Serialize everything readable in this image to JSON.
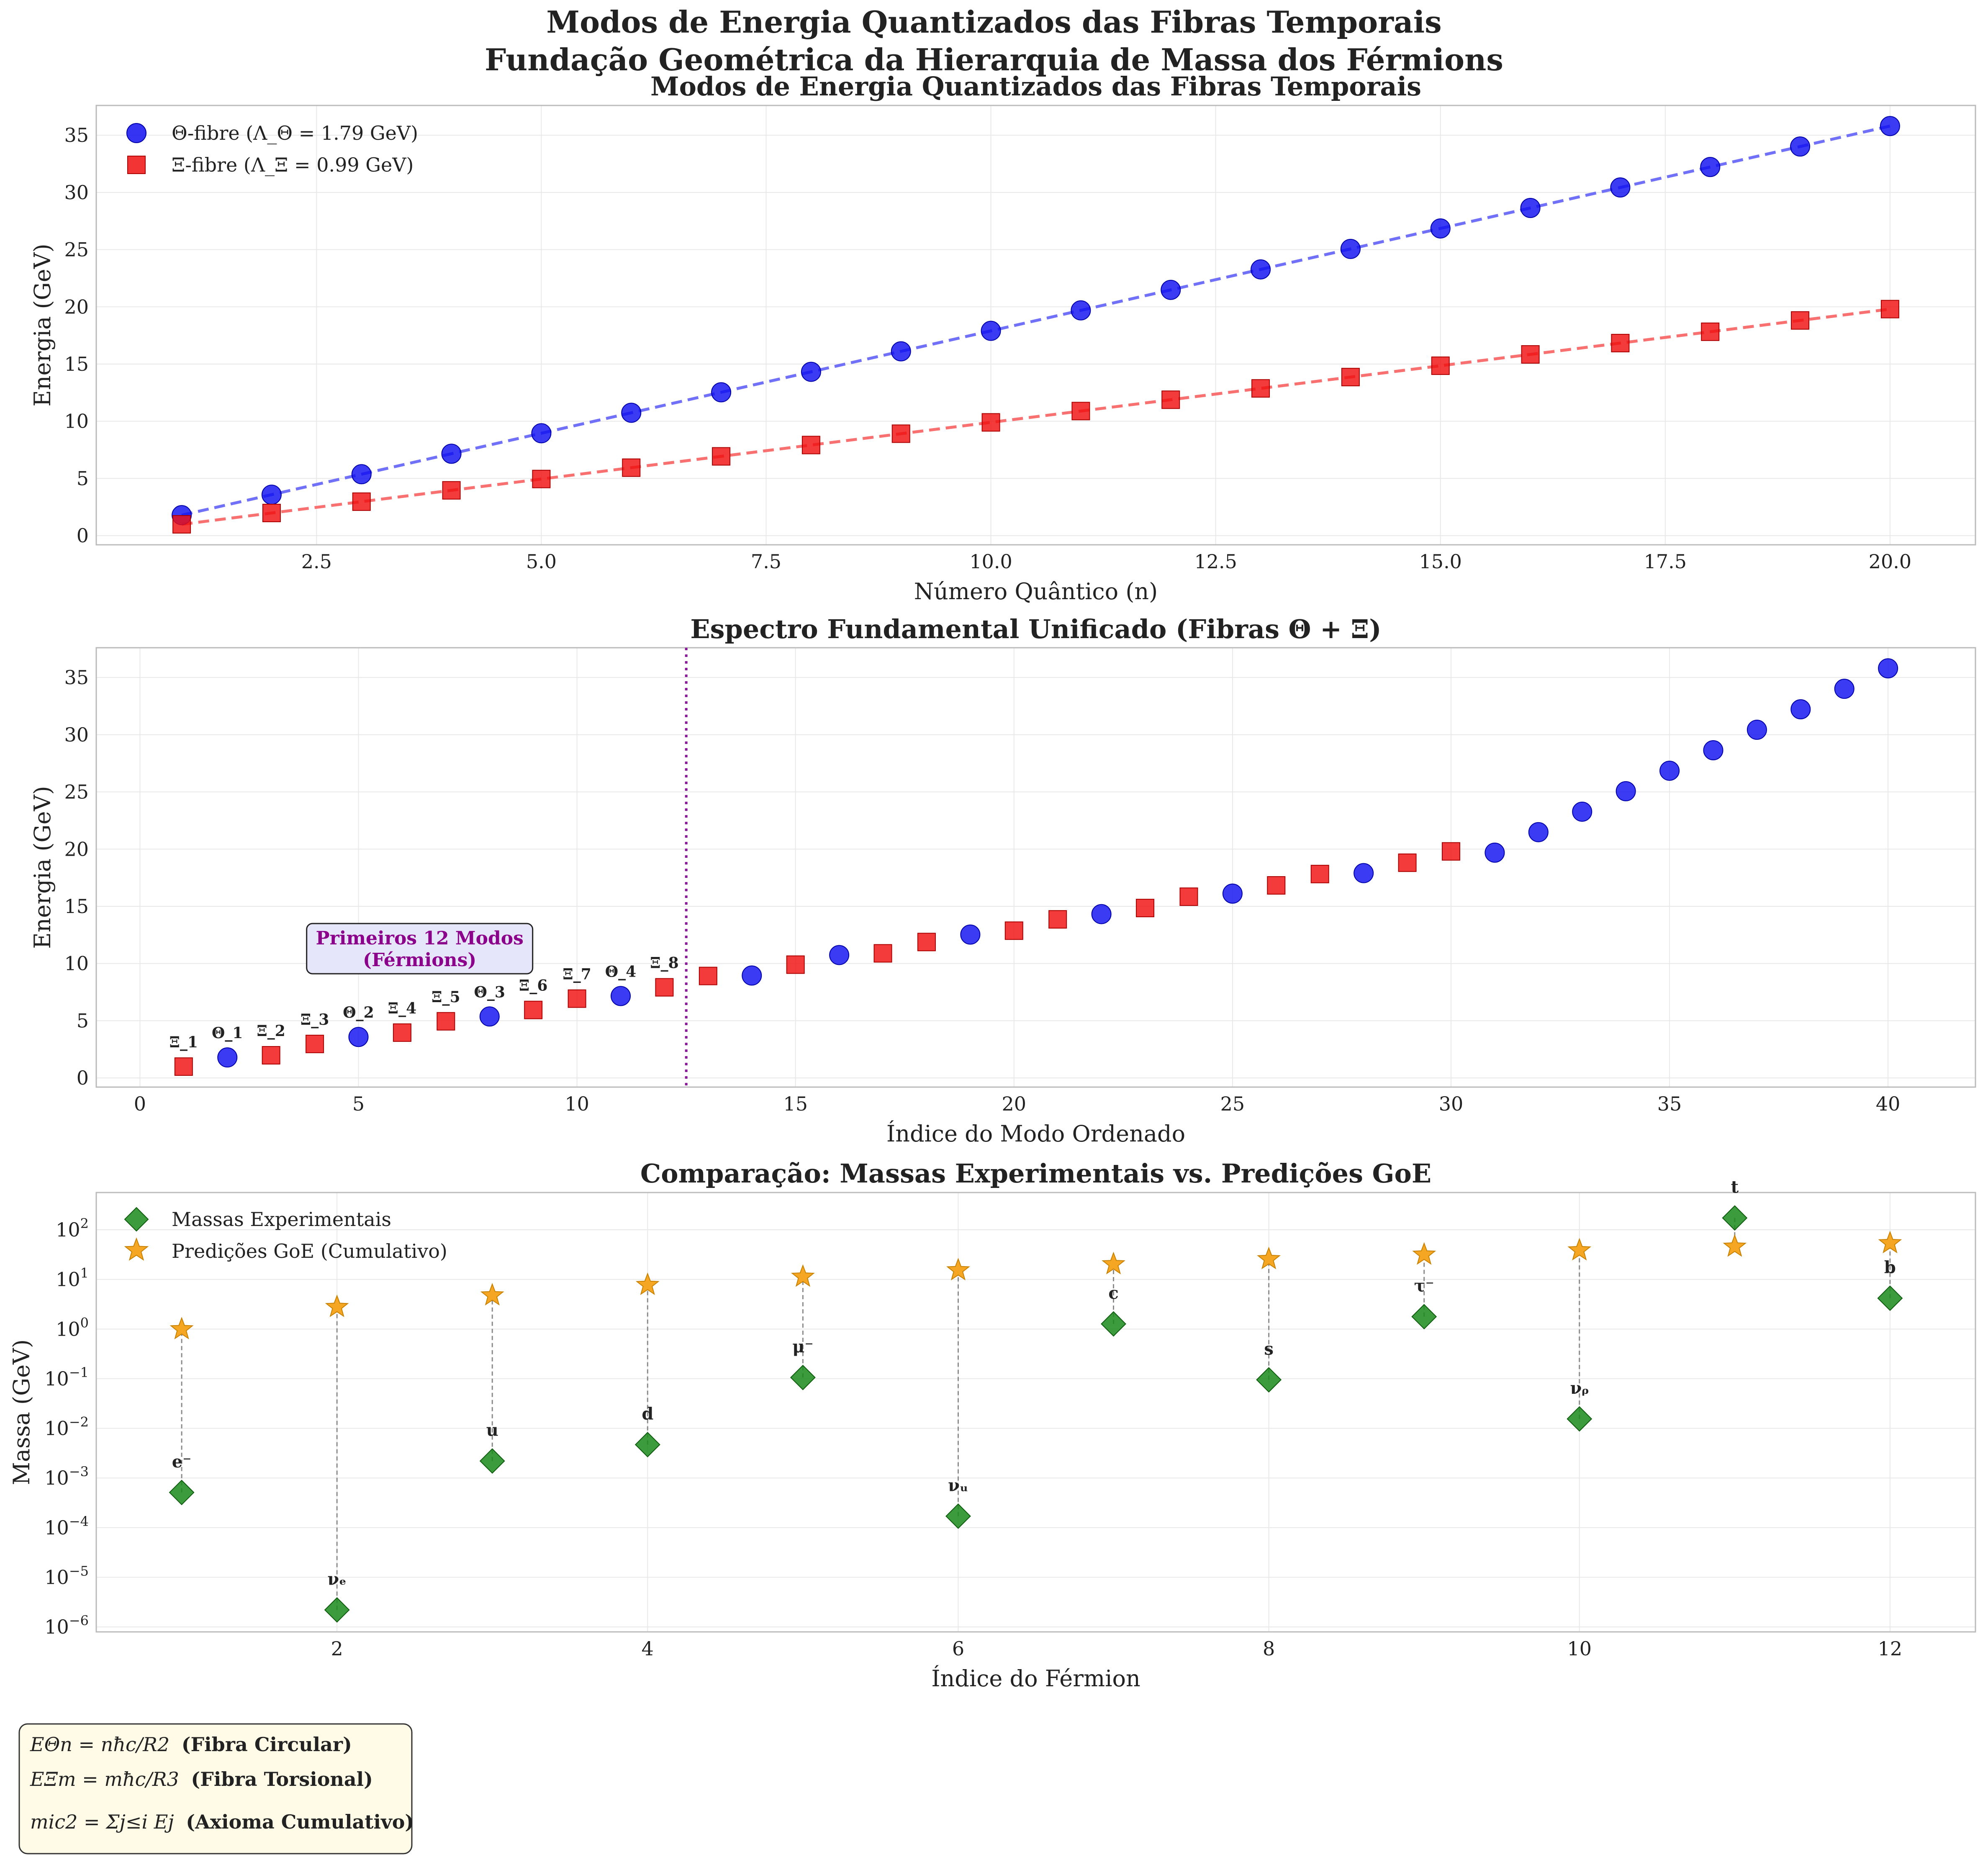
{
  "figure": {
    "suptitle_line1": "Modos de Energia Quantizados das Fibras Temporais",
    "suptitle_line2": "Fundação Geométrica da Hierarquia de Massa dos Férmions"
  },
  "chart_data": [
    {
      "type": "scatter",
      "title": "Modos de Energia Quantizados das Fibras Temporais",
      "xlabel": "Número Quântico (n)",
      "ylabel": "Energia (GeV)",
      "xlim": [
        0.05,
        20.95
      ],
      "ylim": [
        -0.8,
        37.6
      ],
      "xticks": [
        2.5,
        5.0,
        7.5,
        10.0,
        12.5,
        15.0,
        17.5,
        20.0
      ],
      "xtick_labels": [
        "2.5",
        "5.0",
        "7.5",
        "10.0",
        "12.5",
        "15.0",
        "17.5",
        "20.0"
      ],
      "yticks": [
        0,
        5,
        10,
        15,
        20,
        25,
        30,
        35
      ],
      "ytick_labels": [
        "0",
        "5",
        "10",
        "15",
        "20",
        "25",
        "30",
        "35"
      ],
      "grid": true,
      "legend": "top-left",
      "series": [
        {
          "name": "Θ-fibre (Λ_Θ = 1.79 GeV)",
          "marker": "circle",
          "color": "#1010f0",
          "fit_color": "#7070f8",
          "x": [
            1,
            2,
            3,
            4,
            5,
            6,
            7,
            8,
            9,
            10,
            11,
            12,
            13,
            14,
            15,
            16,
            17,
            18,
            19,
            20
          ],
          "values": [
            1.79,
            3.58,
            5.37,
            7.16,
            8.95,
            10.74,
            12.53,
            14.32,
            16.11,
            17.9,
            19.69,
            21.48,
            23.27,
            25.06,
            26.85,
            28.64,
            30.43,
            32.22,
            34.01,
            35.8
          ]
        },
        {
          "name": "Ξ-fibre (Λ_Ξ = 0.99 GeV)",
          "marker": "square",
          "color": "#f01010",
          "fit_color": "#f87070",
          "x": [
            1,
            2,
            3,
            4,
            5,
            6,
            7,
            8,
            9,
            10,
            11,
            12,
            13,
            14,
            15,
            16,
            17,
            18,
            19,
            20
          ],
          "values": [
            0.99,
            1.98,
            2.97,
            3.96,
            4.95,
            5.94,
            6.93,
            7.92,
            8.91,
            9.9,
            10.89,
            11.88,
            12.87,
            13.86,
            14.85,
            15.84,
            16.83,
            17.82,
            18.81,
            19.8
          ]
        }
      ]
    },
    {
      "type": "scatter",
      "title": "Espectro Fundamental Unificado (Fibras Θ + Ξ)",
      "xlabel": "Índice do Modo Ordenado",
      "ylabel": "Energia (GeV)",
      "xlim": [
        -1.0,
        42.0
      ],
      "ylim": [
        -0.8,
        37.6
      ],
      "xticks": [
        0,
        5,
        10,
        15,
        20,
        25,
        30,
        35,
        40
      ],
      "xtick_labels": [
        "0",
        "5",
        "10",
        "15",
        "20",
        "25",
        "30",
        "35",
        "40"
      ],
      "yticks": [
        0,
        5,
        10,
        15,
        20,
        25,
        30,
        35
      ],
      "ytick_labels": [
        "0",
        "5",
        "10",
        "15",
        "20",
        "25",
        "30",
        "35"
      ],
      "grid": true,
      "cutoff_x": 12.5,
      "annotation": {
        "line1": "Primeiros 12 Modos",
        "line2": "(Férmions)",
        "x": 6.4,
        "y": 11.3
      },
      "mode_labels": [
        "Ξ_1",
        "Θ_1",
        "Ξ_2",
        "Ξ_3",
        "Θ_2",
        "Ξ_4",
        "Ξ_5",
        "Θ_3",
        "Ξ_6",
        "Ξ_7",
        "Θ_4",
        "Ξ_8"
      ],
      "points": [
        {
          "x": 1,
          "y": 0.99,
          "fiber": "Xi"
        },
        {
          "x": 2,
          "y": 1.79,
          "fiber": "Theta"
        },
        {
          "x": 3,
          "y": 1.98,
          "fiber": "Xi"
        },
        {
          "x": 4,
          "y": 2.97,
          "fiber": "Xi"
        },
        {
          "x": 5,
          "y": 3.58,
          "fiber": "Theta"
        },
        {
          "x": 6,
          "y": 3.96,
          "fiber": "Xi"
        },
        {
          "x": 7,
          "y": 4.95,
          "fiber": "Xi"
        },
        {
          "x": 8,
          "y": 5.37,
          "fiber": "Theta"
        },
        {
          "x": 9,
          "y": 5.94,
          "fiber": "Xi"
        },
        {
          "x": 10,
          "y": 6.93,
          "fiber": "Xi"
        },
        {
          "x": 11,
          "y": 7.16,
          "fiber": "Theta"
        },
        {
          "x": 12,
          "y": 7.92,
          "fiber": "Xi"
        },
        {
          "x": 13,
          "y": 8.91,
          "fiber": "Xi"
        },
        {
          "x": 14,
          "y": 8.95,
          "fiber": "Theta"
        },
        {
          "x": 15,
          "y": 9.9,
          "fiber": "Xi"
        },
        {
          "x": 16,
          "y": 10.74,
          "fiber": "Theta"
        },
        {
          "x": 17,
          "y": 10.89,
          "fiber": "Xi"
        },
        {
          "x": 18,
          "y": 11.88,
          "fiber": "Xi"
        },
        {
          "x": 19,
          "y": 12.53,
          "fiber": "Theta"
        },
        {
          "x": 20,
          "y": 12.87,
          "fiber": "Xi"
        },
        {
          "x": 21,
          "y": 13.86,
          "fiber": "Xi"
        },
        {
          "x": 22,
          "y": 14.32,
          "fiber": "Theta"
        },
        {
          "x": 23,
          "y": 14.85,
          "fiber": "Xi"
        },
        {
          "x": 24,
          "y": 15.84,
          "fiber": "Xi"
        },
        {
          "x": 25,
          "y": 16.11,
          "fiber": "Theta"
        },
        {
          "x": 26,
          "y": 16.83,
          "fiber": "Xi"
        },
        {
          "x": 27,
          "y": 17.82,
          "fiber": "Xi"
        },
        {
          "x": 28,
          "y": 17.9,
          "fiber": "Theta"
        },
        {
          "x": 29,
          "y": 18.81,
          "fiber": "Xi"
        },
        {
          "x": 30,
          "y": 19.8,
          "fiber": "Xi"
        },
        {
          "x": 31,
          "y": 19.69,
          "fiber": "Theta"
        },
        {
          "x": 32,
          "y": 21.48,
          "fiber": "Theta"
        },
        {
          "x": 33,
          "y": 23.27,
          "fiber": "Theta"
        },
        {
          "x": 34,
          "y": 25.06,
          "fiber": "Theta"
        },
        {
          "x": 35,
          "y": 26.85,
          "fiber": "Theta"
        },
        {
          "x": 36,
          "y": 28.64,
          "fiber": "Theta"
        },
        {
          "x": 37,
          "y": 30.43,
          "fiber": "Theta"
        },
        {
          "x": 38,
          "y": 32.22,
          "fiber": "Theta"
        },
        {
          "x": 39,
          "y": 34.01,
          "fiber": "Theta"
        },
        {
          "x": 40,
          "y": 35.8,
          "fiber": "Theta"
        }
      ]
    },
    {
      "type": "scatter",
      "title": "Comparação: Massas Experimentais vs. Predições GoE",
      "xlabel": "Índice do Férmion",
      "ylabel": "Massa (GeV)",
      "yscale": "log",
      "xlim": [
        0.45,
        12.55
      ],
      "ylim_log10": [
        -6.1,
        2.75
      ],
      "xticks": [
        2,
        4,
        6,
        8,
        10,
        12
      ],
      "xtick_labels": [
        "2",
        "4",
        "6",
        "8",
        "10",
        "12"
      ],
      "yticks_log10": [
        -6,
        -5,
        -4,
        -3,
        -2,
        -1,
        0,
        1,
        2
      ],
      "ytick_labels": [
        "10−6",
        "10−5",
        "10−4",
        "10−3",
        "10−2",
        "10−1",
        "100",
        "101",
        "102"
      ],
      "grid": true,
      "legend": "top-left",
      "series": [
        {
          "name": "Massas Experimentais",
          "marker": "diamond",
          "color": "#1a8a1a",
          "x": [
            1,
            2,
            3,
            4,
            5,
            6,
            7,
            8,
            9,
            10,
            11,
            12
          ],
          "values": [
            0.000511,
            2.2e-06,
            0.0022,
            0.0047,
            0.1057,
            0.00017,
            1.27,
            0.095,
            1.777,
            0.0155,
            173,
            4.18
          ],
          "labels": [
            "e⁻",
            "νₑ",
            "u",
            "d",
            "μ⁻",
            "νᵤ",
            "c",
            "s",
            "τ⁻",
            "νᵨ",
            "t",
            "b"
          ]
        },
        {
          "name": "Predições GoE (Cumulativo)",
          "marker": "star",
          "color": "#f5a623",
          "x": [
            1,
            2,
            3,
            4,
            5,
            6,
            7,
            8,
            9,
            10,
            11,
            12
          ],
          "values": [
            0.99,
            2.78,
            4.76,
            7.73,
            11.31,
            15.27,
            20.22,
            25.59,
            31.53,
            38.46,
            45.62,
            53.54
          ]
        }
      ]
    }
  ],
  "formula_box": {
    "line1_lhs": "EΘn = nħc/R2",
    "line1_text": "(Fibra Circular)",
    "line2_lhs": "EΞm = mħc/R3",
    "line2_text": "(Fibra Torsional)",
    "line3_lhs": "mic2 = Σj≤i Ej",
    "line3_text": "(Axioma Cumulativo)"
  }
}
